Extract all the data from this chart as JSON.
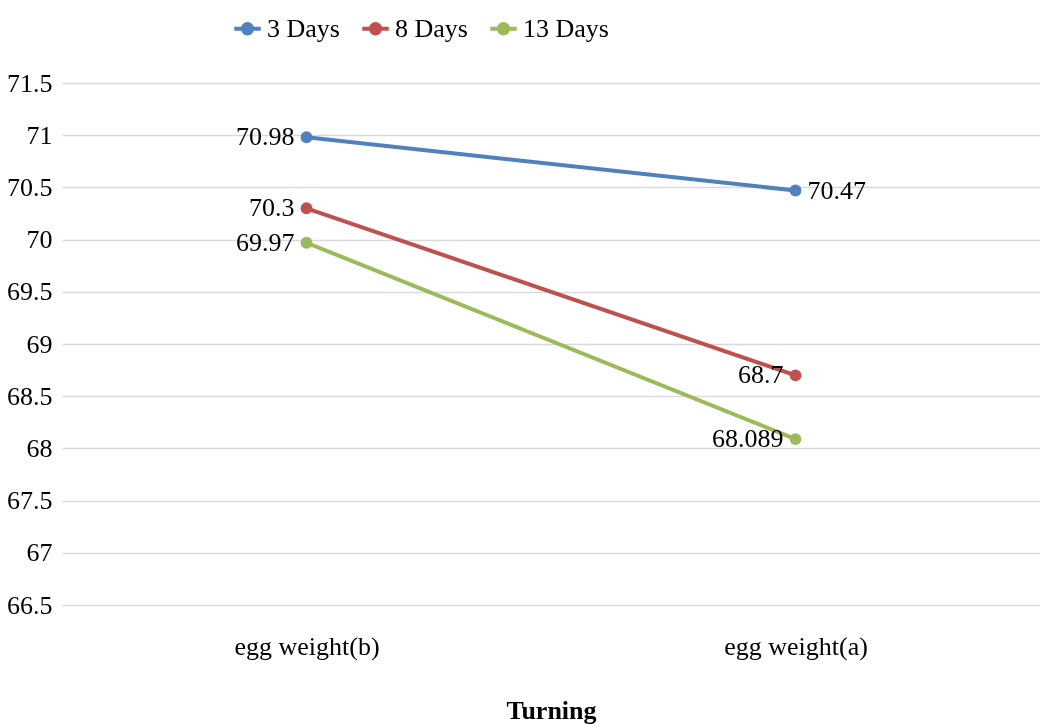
{
  "chart_data": {
    "type": "line",
    "xlabel": "Turning",
    "categories": [
      "egg weight(b)",
      "egg weight(a)"
    ],
    "series": [
      {
        "name": "3 Days",
        "color": "#4f81bd",
        "values": [
          70.98,
          70.47
        ]
      },
      {
        "name": "8 Days",
        "color": "#c0504d",
        "values": [
          70.3,
          68.7
        ]
      },
      {
        "name": "13 Days",
        "color": "#9bbb59",
        "values": [
          69.97,
          68.089
        ]
      }
    ],
    "ylim": [
      66.5,
      71.5
    ],
    "yticks": [
      66.5,
      67,
      67.5,
      68,
      68.5,
      69,
      69.5,
      70,
      70.5,
      71,
      71.5
    ],
    "grid": "y",
    "legend": "top",
    "marker": "circle",
    "line_style": "solid",
    "data_labels": true
  }
}
